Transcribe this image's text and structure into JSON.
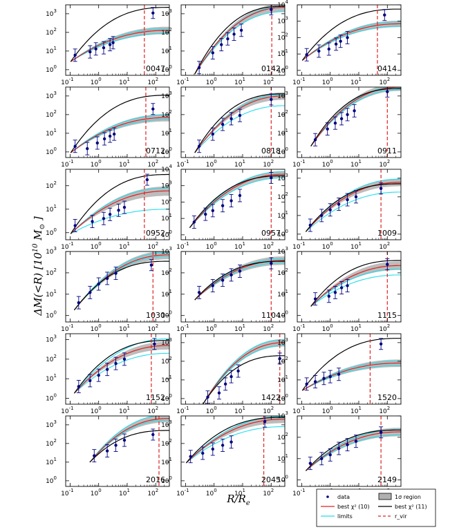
{
  "chart_data": {
    "type": "line",
    "xlabel": "R/R",
    "xlabel_sub": "e",
    "ylabel": "ΔM(<R) [10",
    "ylabel_exp": "10",
    "ylabel_unit": "M",
    "ylabel_sub": "⊙",
    "ylabel_close": "]",
    "xscale": "log",
    "yscale": "log",
    "xlim": [
      0.07,
      300
    ],
    "x_ticks": [
      0.1,
      1,
      10,
      100
    ],
    "x_tick_labels": [
      "10",
      "10",
      "10",
      "10"
    ],
    "x_tick_exps": [
      "-1",
      "0",
      "1",
      "2"
    ],
    "y_tick_labels": [
      "10",
      "10",
      "10",
      "10",
      "10"
    ],
    "y_tick_exps": [
      "0",
      "1",
      "2",
      "3",
      "4"
    ],
    "legend": {
      "position": "bottom-right",
      "entries": [
        "data",
        "1σ region",
        "best χ² (10)",
        "best χ² (11)",
        "limits",
        "r_vir"
      ]
    },
    "series_colors": {
      "data": "#00007f",
      "best10": "#e02020",
      "best11": "#000000",
      "limits": "#22ddee",
      "region": "#b0b0b0",
      "rvir": "#e02020"
    },
    "panels": [
      {
        "label": "0047",
        "ylim": [
          0.5,
          3000
        ],
        "data": [
          [
            0.15,
            6
          ],
          [
            0.5,
            9
          ],
          [
            0.8,
            13
          ],
          [
            1.5,
            15
          ],
          [
            2.5,
            22
          ],
          [
            3.2,
            28
          ],
          [
            80,
            1100
          ]
        ],
        "best10_end": 130,
        "best11_end": 2200,
        "limits": [
          90,
          160
        ],
        "rvir": 40
      },
      {
        "label": "0142",
        "ylim": [
          0.5,
          3000
        ],
        "data": [
          [
            0.3,
            1.3
          ],
          [
            0.9,
            8
          ],
          [
            1.8,
            22
          ],
          [
            3,
            45
          ],
          [
            5,
            80
          ],
          [
            9,
            130
          ],
          [
            100,
            1700
          ]
        ],
        "best10_end": 2200,
        "best11_end": 2500,
        "limits": [
          1300,
          2400
        ],
        "rvir": 105
      },
      {
        "label": "0414",
        "ylim": [
          0.5,
          10000
        ],
        "data": [
          [
            0.15,
            9
          ],
          [
            0.4,
            15
          ],
          [
            0.9,
            20
          ],
          [
            1.6,
            40
          ],
          [
            2.3,
            60
          ],
          [
            4,
            100
          ],
          [
            80,
            2400
          ]
        ],
        "best10_end": 700,
        "best11_end": 5500,
        "limits": [
          500,
          900
        ],
        "rvir": 45
      },
      {
        "label": "0712",
        "ylim": [
          0.5,
          3000
        ],
        "data": [
          [
            0.15,
            2
          ],
          [
            0.4,
            1.5
          ],
          [
            0.9,
            3
          ],
          [
            1.6,
            5
          ],
          [
            2.5,
            7
          ],
          [
            3.5,
            9
          ],
          [
            80,
            200
          ]
        ],
        "best10_end": 70,
        "best11_end": 1100,
        "limits": [
          55,
          95
        ],
        "rvir": 45
      },
      {
        "label": "0818",
        "ylim": [
          0.5,
          3000
        ],
        "data": [
          [
            0.3,
            2
          ],
          [
            0.9,
            9
          ],
          [
            2,
            30
          ],
          [
            4,
            60
          ],
          [
            8,
            90
          ],
          [
            100,
            650
          ]
        ],
        "best10_end": 1000,
        "best11_end": 1300,
        "limits": [
          300,
          1200
        ],
        "rvir": 100
      },
      {
        "label": "0911",
        "ylim": [
          0.5,
          3000
        ],
        "data": [
          [
            0.3,
            4.5
          ],
          [
            0.8,
            17
          ],
          [
            1.5,
            35
          ],
          [
            2.5,
            60
          ],
          [
            4,
            100
          ],
          [
            7,
            160
          ],
          [
            100,
            1700
          ]
        ],
        "best10_end": 3000,
        "best11_end": 2500,
        "limits": [
          2200,
          3300
        ],
        "rvir": 100
      },
      {
        "label": "0952",
        "ylim": [
          0.5,
          500
        ],
        "data": [
          [
            0.15,
            2
          ],
          [
            0.6,
            3
          ],
          [
            1.5,
            4
          ],
          [
            2.5,
            6
          ],
          [
            5,
            9
          ],
          [
            8,
            12
          ],
          [
            50,
            180
          ]
        ],
        "best10_end": 60,
        "best11_end": 300,
        "limits": [
          10,
          80
        ],
        "rvir": 40
      },
      {
        "label": "0957",
        "ylim": [
          0.5,
          10000
        ],
        "data": [
          [
            0.2,
            6
          ],
          [
            0.5,
            18
          ],
          [
            0.9,
            30
          ],
          [
            2,
            60
          ],
          [
            4,
            120
          ],
          [
            8,
            250
          ],
          [
            100,
            3000
          ]
        ],
        "best10_end": 5000,
        "best11_end": 4000,
        "limits": [
          3000,
          7000
        ],
        "rvir": 100
      },
      {
        "label": "1009",
        "ylim": [
          0.5,
          3000
        ],
        "data": [
          [
            0.2,
            3
          ],
          [
            0.5,
            10
          ],
          [
            1,
            20
          ],
          [
            2,
            40
          ],
          [
            4,
            70
          ],
          [
            8,
            100
          ],
          [
            60,
            280
          ]
        ],
        "best10_end": 600,
        "best11_end": 500,
        "limits": [
          180,
          900
        ],
        "rvir": 60
      },
      {
        "label": "1030",
        "ylim": [
          0.5,
          1000
        ],
        "data": [
          [
            0.2,
            4
          ],
          [
            0.5,
            12
          ],
          [
            1,
            30
          ],
          [
            2,
            55
          ],
          [
            4,
            95
          ],
          [
            70,
            230
          ]
        ],
        "best10_end": 700,
        "best11_end": 350,
        "limits": [
          600,
          900
        ],
        "rvir": 80
      },
      {
        "label": "1104",
        "ylim": [
          0.5,
          1000
        ],
        "data": [
          [
            0.3,
            12
          ],
          [
            0.9,
            25
          ],
          [
            2,
            45
          ],
          [
            4,
            80
          ],
          [
            8,
            120
          ],
          [
            100,
            280
          ]
        ],
        "best10_end": 380,
        "best11_end": 350,
        "limits": [
          300,
          450
        ],
        "rvir": 100
      },
      {
        "label": "1115",
        "ylim": [
          0.5,
          1000
        ],
        "data": [
          [
            0.3,
            6
          ],
          [
            0.9,
            8
          ],
          [
            1.5,
            12
          ],
          [
            2.5,
            20
          ],
          [
            4,
            25
          ],
          [
            100,
            250
          ]
        ],
        "best10_end": 220,
        "best11_end": 380,
        "limits": [
          80,
          150
        ],
        "rvir": 100
      },
      {
        "label": "1152",
        "ylim": [
          0.5,
          2000
        ],
        "data": [
          [
            0.2,
            4
          ],
          [
            0.5,
            8
          ],
          [
            1,
            15
          ],
          [
            2,
            30
          ],
          [
            4,
            60
          ],
          [
            8,
            100
          ],
          [
            90,
            600
          ]
        ],
        "best10_end": 500,
        "best11_end": 900,
        "limits": [
          200,
          1100
        ],
        "rvir": 70
      },
      {
        "label": "1422",
        "ylim": [
          0.5,
          3000
        ],
        "data": [
          [
            0.6,
            1.2
          ],
          [
            1.5,
            2
          ],
          [
            2.5,
            6
          ],
          [
            4,
            15
          ],
          [
            7,
            30
          ],
          [
            200,
            140
          ]
        ],
        "best10_end": 1000,
        "best11_end": 200,
        "limits": [
          700,
          1400
        ],
        "rvir": 200
      },
      {
        "label": "1520",
        "ylim": [
          0.5,
          3000
        ],
        "data": [
          [
            0.15,
            6
          ],
          [
            0.3,
            8
          ],
          [
            0.6,
            12
          ],
          [
            1,
            15
          ],
          [
            2,
            20
          ],
          [
            60,
            850
          ]
        ],
        "best10_end": 80,
        "best11_end": 1700,
        "limits": [
          60,
          100
        ],
        "rvir": 25
      },
      {
        "label": "2016",
        "ylim": [
          0.5,
          3000
        ],
        "data": [
          [
            0.7,
            22
          ],
          [
            2,
            40
          ],
          [
            4,
            80
          ],
          [
            8,
            150
          ],
          [
            80,
            300
          ]
        ],
        "best10_end": 2200,
        "best11_end": 500,
        "limits": [
          1800,
          3500
        ],
        "rvir": 130
      },
      {
        "label": "2045",
        "ylim": [
          0.5,
          3000
        ],
        "data": [
          [
            0.15,
            20
          ],
          [
            0.4,
            30
          ],
          [
            0.9,
            50
          ],
          [
            2,
            80
          ],
          [
            4,
            120
          ],
          [
            60,
            1500
          ]
        ],
        "best10_end": 2000,
        "best11_end": 2500,
        "limits": [
          800,
          2800
        ],
        "rvir": 55
      },
      {
        "label": "2149",
        "ylim": [
          0.5,
          1000
        ],
        "data": [
          [
            0.2,
            6
          ],
          [
            0.5,
            10
          ],
          [
            1,
            15
          ],
          [
            2,
            30
          ],
          [
            4,
            45
          ],
          [
            8,
            65
          ],
          [
            60,
            170
          ]
        ],
        "best10_end": 180,
        "best11_end": 220,
        "limits": [
          130,
          230
        ],
        "rvir": 60
      }
    ]
  }
}
